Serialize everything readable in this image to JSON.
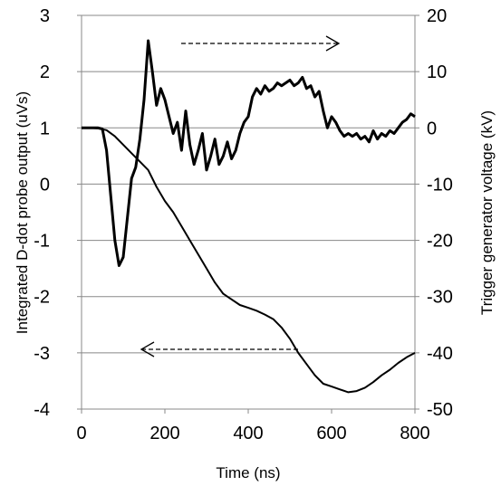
{
  "chart_data": {
    "type": "line",
    "xlabel": "Time (ns)",
    "ylabel": "Integrated D-dot probe output (uVs)",
    "y2label": "Trigger generator voltage (kV)",
    "xlim": [
      0,
      800
    ],
    "ylim": [
      -4,
      3
    ],
    "y2lim": [
      -50,
      20
    ],
    "xticks": [
      "0",
      "200",
      "400",
      "600",
      "800"
    ],
    "yticks": [
      "3",
      "2",
      "1",
      "0",
      "-1",
      "-2",
      "-3",
      "-4"
    ],
    "y2ticks": [
      "20",
      "10",
      "0",
      "-10",
      "-20",
      "-30",
      "-40",
      "-50"
    ],
    "grid": "horizontal",
    "arrow_right_note": "dashed arrow pointing right toward right axis (upper curve)",
    "arrow_left_note": "dashed arrow pointing left toward left axis (lower curve)",
    "series": [
      {
        "axis": "left",
        "x": [
          0,
          20,
          40,
          50,
          60,
          70,
          80,
          90,
          100,
          110,
          120,
          130,
          140,
          150,
          160,
          170,
          180,
          190,
          200,
          210,
          220,
          230,
          240,
          250,
          260,
          270,
          280,
          290,
          300,
          310,
          320,
          330,
          340,
          350,
          360,
          370,
          380,
          390,
          400,
          410,
          420,
          430,
          440,
          450,
          460,
          470,
          480,
          490,
          500,
          510,
          520,
          530,
          540,
          550,
          560,
          570,
          580,
          590,
          600,
          610,
          620,
          630,
          640,
          650,
          660,
          670,
          680,
          690,
          700,
          710,
          720,
          730,
          740,
          750,
          760,
          770,
          780,
          790,
          800
        ],
        "values": [
          1.0,
          1.0,
          1.0,
          0.98,
          0.6,
          -0.2,
          -1.0,
          -1.45,
          -1.3,
          -0.6,
          0.1,
          0.3,
          0.8,
          1.5,
          2.55,
          2.0,
          1.4,
          1.7,
          1.5,
          1.2,
          0.9,
          1.1,
          0.6,
          1.3,
          0.7,
          0.35,
          0.6,
          0.9,
          0.25,
          0.5,
          0.8,
          0.35,
          0.5,
          0.75,
          0.45,
          0.6,
          0.9,
          1.1,
          1.2,
          1.55,
          1.7,
          1.6,
          1.75,
          1.65,
          1.7,
          1.8,
          1.75,
          1.8,
          1.85,
          1.75,
          1.8,
          1.9,
          1.7,
          1.75,
          1.55,
          1.65,
          1.3,
          1.0,
          1.2,
          1.1,
          0.95,
          0.85,
          0.9,
          0.85,
          0.9,
          0.8,
          0.85,
          0.75,
          0.95,
          0.8,
          0.9,
          0.85,
          0.95,
          0.9,
          1.0,
          1.1,
          1.15,
          1.25,
          1.2
        ]
      },
      {
        "axis": "right",
        "x": [
          0,
          20,
          40,
          60,
          80,
          100,
          120,
          140,
          160,
          180,
          200,
          220,
          240,
          260,
          280,
          300,
          320,
          340,
          360,
          380,
          400,
          420,
          440,
          460,
          480,
          500,
          520,
          540,
          560,
          580,
          600,
          620,
          640,
          660,
          680,
          700,
          720,
          740,
          760,
          780,
          800
        ],
        "values": [
          0,
          0,
          -0.1,
          -0.4,
          -1.5,
          -3,
          -4.5,
          -6,
          -7.5,
          -10.5,
          -13,
          -15,
          -17.5,
          -20,
          -22.5,
          -25,
          -27.5,
          -29.5,
          -30.5,
          -31.5,
          -32,
          -32.5,
          -33.2,
          -34,
          -35.5,
          -37.5,
          -40,
          -42,
          -44,
          -45.5,
          -46,
          -46.5,
          -47,
          -46.8,
          -46.2,
          -45.2,
          -44,
          -43,
          -41.8,
          -40.8,
          -40
        ]
      }
    ]
  }
}
